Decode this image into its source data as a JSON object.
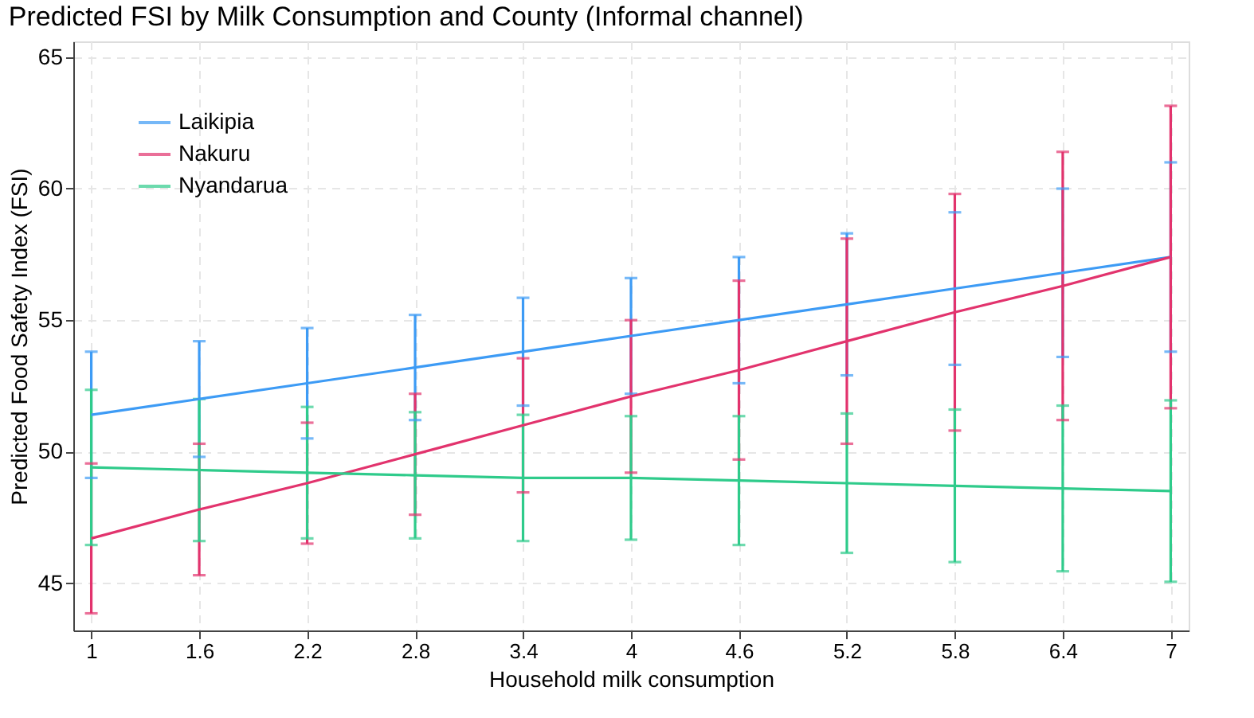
{
  "chart_data": {
    "type": "line",
    "title": "Predicted FSI by Milk Consumption and County (Informal channel)",
    "xlabel": "Household milk consumption",
    "ylabel": "Predicted Food Safety Index (FSI)",
    "x": [
      1,
      1.6,
      2.2,
      2.8,
      3.4,
      4,
      4.6,
      5.2,
      5.8,
      6.4,
      7
    ],
    "series": [
      {
        "name": "Laikipia",
        "color": "#3d9bf5",
        "values": [
          51.4,
          52.0,
          52.6,
          53.2,
          53.8,
          54.4,
          55.0,
          55.6,
          56.2,
          56.8,
          57.4
        ],
        "errors": [
          2.4,
          2.2,
          2.1,
          2.0,
          2.05,
          2.2,
          2.4,
          2.7,
          2.9,
          3.2,
          3.6
        ]
      },
      {
        "name": "Nakuru",
        "color": "#e2336d",
        "values": [
          46.7,
          47.8,
          48.8,
          49.9,
          51.0,
          52.1,
          53.1,
          54.2,
          55.3,
          56.3,
          57.4
        ],
        "errors": [
          2.85,
          2.5,
          2.3,
          2.3,
          2.55,
          2.9,
          3.4,
          3.9,
          4.5,
          5.1,
          5.75
        ]
      },
      {
        "name": "Nyandarua",
        "color": "#2fcb8b",
        "values": [
          49.4,
          49.3,
          49.2,
          49.1,
          49.0,
          49.0,
          48.9,
          48.8,
          48.7,
          48.6,
          48.5
        ],
        "errors": [
          2.95,
          2.7,
          2.5,
          2.4,
          2.4,
          2.35,
          2.45,
          2.65,
          2.9,
          3.15,
          3.45
        ]
      }
    ],
    "xlim": [
      0.9,
      7.1
    ],
    "ylim": [
      43.2,
      65.6
    ],
    "xticks": [
      1,
      1.6,
      2.2,
      2.8,
      3.4,
      4,
      4.6,
      5.2,
      5.8,
      6.4,
      7
    ],
    "yticks": [
      45,
      50,
      55,
      60,
      65
    ],
    "grid": true,
    "legend": "top left",
    "line_style": "solid",
    "marker": "none"
  }
}
